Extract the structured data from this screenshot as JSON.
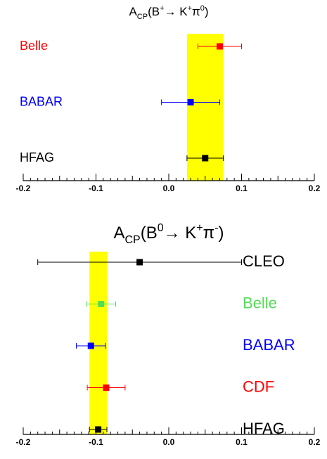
{
  "chart_data": [
    {
      "type": "errorbar",
      "title": [
        {
          "text": "A"
        },
        {
          "text": "CP",
          "script": "sub"
        },
        {
          "text": "(B"
        },
        {
          "text": "+",
          "script": "super"
        },
        {
          "text": "→ K"
        },
        {
          "text": "+",
          "script": "super"
        },
        {
          "text": "π"
        },
        {
          "text": "0",
          "script": "super"
        },
        {
          "text": ")"
        }
      ],
      "categories": [
        "Belle",
        "BABAR",
        "HFAG"
      ],
      "values": [
        0.07,
        0.03,
        0.05
      ],
      "errors": [
        0.03,
        0.04,
        0.025
      ],
      "colors": [
        "#ff0000",
        "#0000ff",
        "#000000"
      ],
      "band": [
        0.025,
        0.075
      ],
      "band_color": "#ffff00",
      "label_side": "left",
      "xlim": [
        -0.2,
        0.2
      ],
      "xticks": [
        -0.2,
        -0.1,
        {
          "value": 0,
          "label": "0.0"
        },
        0.1,
        0.2
      ]
    },
    {
      "type": "errorbar",
      "title": [
        {
          "text": "A"
        },
        {
          "text": "CP",
          "script": "sub"
        },
        {
          "text": "(B"
        },
        {
          "text": "0",
          "script": "super"
        },
        {
          "text": "→ K"
        },
        {
          "text": "+",
          "script": "super"
        },
        {
          "text": "π"
        },
        {
          "text": "-",
          "script": "super"
        },
        {
          "text": ")"
        }
      ],
      "categories": [
        "CLEO",
        "Belle",
        "BABAR",
        "CDF",
        "HFAG"
      ],
      "values": [
        -0.04,
        -0.093,
        -0.107,
        -0.086,
        -0.097
      ],
      "errors": [
        0.14,
        0.02,
        0.02,
        0.026,
        0.012
      ],
      "colors": [
        "#000000",
        "#55dd55",
        "#0000ff",
        "#ff0000",
        "#000000"
      ],
      "band": [
        -0.109,
        -0.085
      ],
      "band_color": "#ffff00",
      "label_side": "right",
      "xlim": [
        -0.2,
        0.2
      ],
      "xticks": [
        -0.2,
        -0.1,
        {
          "value": 0,
          "label": "0.0"
        },
        0.1,
        0.2
      ]
    }
  ]
}
